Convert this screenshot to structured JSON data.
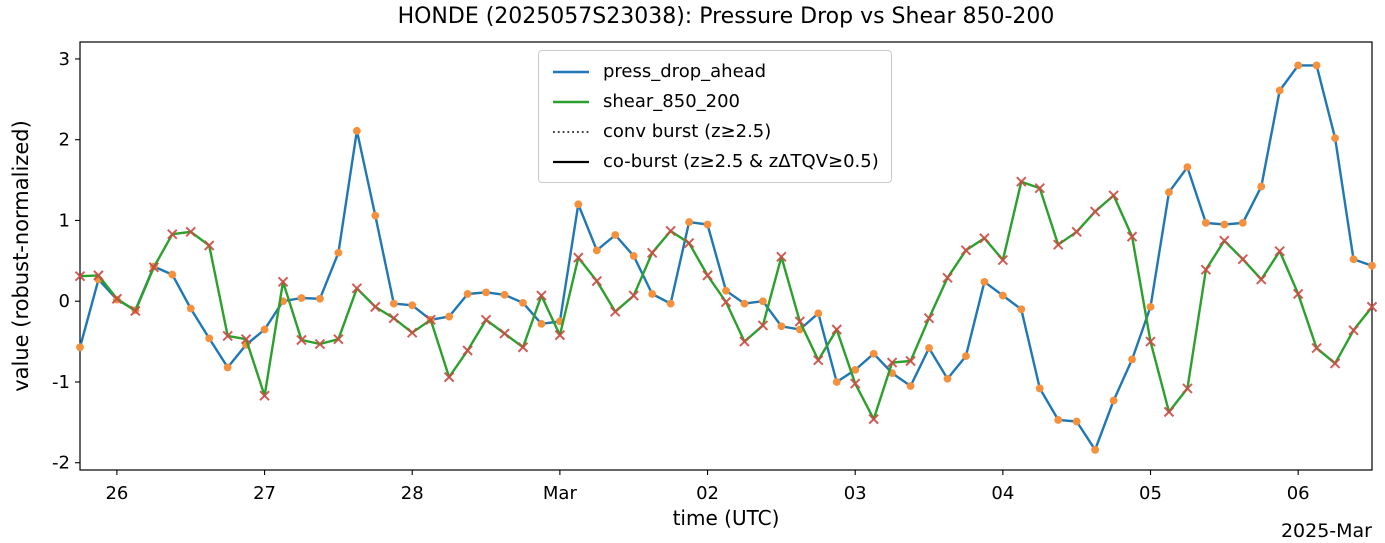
{
  "chart_data": {
    "type": "line",
    "title": "HONDE (2025057S23038): Pressure Drop vs Shear 850-200",
    "x_axis": {
      "label": "time (UTC)",
      "offset_label": "2025-Mar",
      "tick_labels": [
        "26",
        "27",
        "28",
        "Mar",
        "02",
        "03",
        "04",
        "05",
        "06"
      ],
      "tick_indices": [
        2,
        10,
        18,
        26,
        34,
        42,
        50,
        58,
        66
      ],
      "points_per_day": 8,
      "step_hours": 3
    },
    "y_axis": {
      "label": "value (robust-normalized)",
      "ticks": [
        3,
        2,
        1,
        0,
        -1,
        -2
      ],
      "lim": [
        -2.09,
        3.21
      ]
    },
    "grid": false,
    "legend": {
      "position": "upper-center",
      "entries": [
        {
          "label": "press_drop_ahead",
          "style": "solid",
          "color": "#1f77b4",
          "width": 2.6
        },
        {
          "label": "shear_850_200",
          "style": "solid",
          "color": "#2ca02c",
          "width": 2.6
        },
        {
          "label": "conv burst (z≥2.5)",
          "style": "dotted",
          "color": "#000000",
          "width": 1.6
        },
        {
          "label": "co-burst (z≥2.5 & zΔTQV≥0.5)",
          "style": "solid",
          "color": "#000000",
          "width": 2.2
        }
      ]
    },
    "series": [
      {
        "name": "press_drop_ahead",
        "color": "#1f77b4",
        "marker": "circle",
        "marker_color": "#f5913d",
        "values": [
          -0.57,
          0.27,
          0.02,
          -0.11,
          0.43,
          0.33,
          -0.09,
          -0.46,
          -0.82,
          -0.54,
          -0.35,
          0.0,
          0.04,
          0.03,
          0.6,
          2.11,
          1.06,
          -0.03,
          -0.05,
          -0.23,
          -0.19,
          0.09,
          0.11,
          0.08,
          -0.02,
          -0.28,
          -0.25,
          1.2,
          0.63,
          0.82,
          0.56,
          0.09,
          -0.03,
          0.98,
          0.95,
          0.13,
          -0.03,
          0.0,
          -0.31,
          -0.35,
          -0.15,
          -1.0,
          -0.85,
          -0.65,
          -0.89,
          -1.05,
          -0.58,
          -0.96,
          -0.68,
          0.24,
          0.07,
          -0.1,
          -1.08,
          -1.47,
          -1.49,
          -1.84,
          -1.23,
          -0.72,
          -0.07,
          1.35,
          1.66,
          0.97,
          0.95,
          0.97,
          1.42,
          2.61,
          2.92,
          2.92,
          2.02,
          0.52,
          0.44
        ]
      },
      {
        "name": "shear_850_200",
        "color": "#2ca02c",
        "marker": "x",
        "marker_color": "#cd4a45",
        "values": [
          0.31,
          0.32,
          0.03,
          -0.12,
          0.42,
          0.83,
          0.86,
          0.69,
          -0.43,
          -0.47,
          -1.17,
          0.24,
          -0.48,
          -0.53,
          -0.47,
          0.16,
          -0.07,
          -0.21,
          -0.39,
          -0.23,
          -0.94,
          -0.61,
          -0.23,
          -0.4,
          -0.57,
          0.07,
          -0.42,
          0.54,
          0.25,
          -0.13,
          0.07,
          0.6,
          0.87,
          0.72,
          0.32,
          -0.01,
          -0.5,
          -0.3,
          0.55,
          -0.25,
          -0.73,
          -0.35,
          -1.02,
          -1.46,
          -0.76,
          -0.74,
          -0.21,
          0.29,
          0.63,
          0.78,
          0.51,
          1.48,
          1.4,
          0.7,
          0.86,
          1.11,
          1.31,
          0.8,
          -0.5,
          -1.37,
          -1.08,
          0.39,
          0.75,
          0.52,
          0.27,
          0.62,
          0.09,
          -0.58,
          -0.77,
          -0.36,
          -0.07
        ]
      }
    ]
  }
}
